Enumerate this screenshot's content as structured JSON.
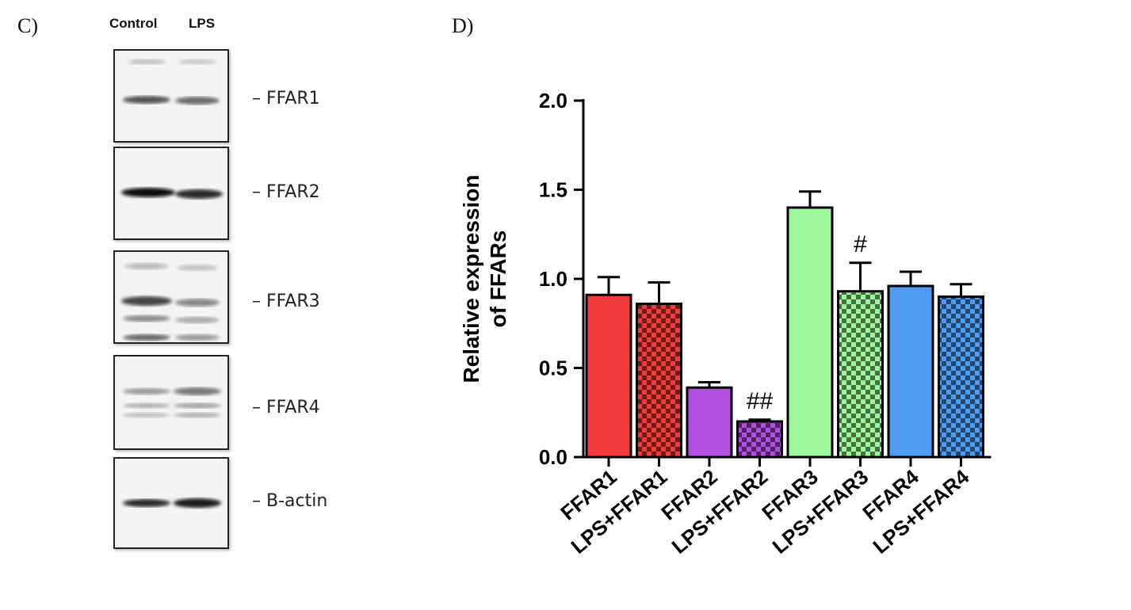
{
  "panels": {
    "c_label": "C)",
    "d_label": "D)"
  },
  "blot": {
    "lanes": [
      "Control",
      "LPS"
    ],
    "rows": [
      {
        "protein": "FFAR1",
        "marker": "–"
      },
      {
        "protein": "FFAR2",
        "marker": "–"
      },
      {
        "protein": "FFAR3",
        "marker": "–"
      },
      {
        "protein": "FFAR4",
        "marker": "–"
      },
      {
        "protein": "B-actin",
        "marker": "–"
      }
    ]
  },
  "chart_data": {
    "type": "bar",
    "ylabel": "Relative expression of FFARs",
    "ylim": [
      0,
      2.0
    ],
    "yticks": [
      "0.0",
      "0.5",
      "1.0",
      "1.5",
      "2.0"
    ],
    "categories": [
      "FFAR1",
      "LPS+FFAR1",
      "FFAR2",
      "LPS+FFAR2",
      "FFAR3",
      "LPS+FFAR3",
      "FFAR4",
      "LPS+FFAR4"
    ],
    "values": [
      0.91,
      0.86,
      0.39,
      0.2,
      1.4,
      0.93,
      0.96,
      0.9
    ],
    "errors": [
      0.1,
      0.12,
      0.03,
      0.01,
      0.09,
      0.16,
      0.08,
      0.07
    ],
    "colors": [
      "#f23b3b",
      "#f23b3b",
      "#b04fe0",
      "#b04fe0",
      "#9ef79a",
      "#9ef79a",
      "#4e9cf2",
      "#4e9cf2"
    ],
    "patterned": [
      false,
      true,
      false,
      true,
      false,
      true,
      false,
      true
    ],
    "annotations": [
      "",
      "",
      "",
      "##",
      "",
      "#",
      "",
      ""
    ]
  }
}
